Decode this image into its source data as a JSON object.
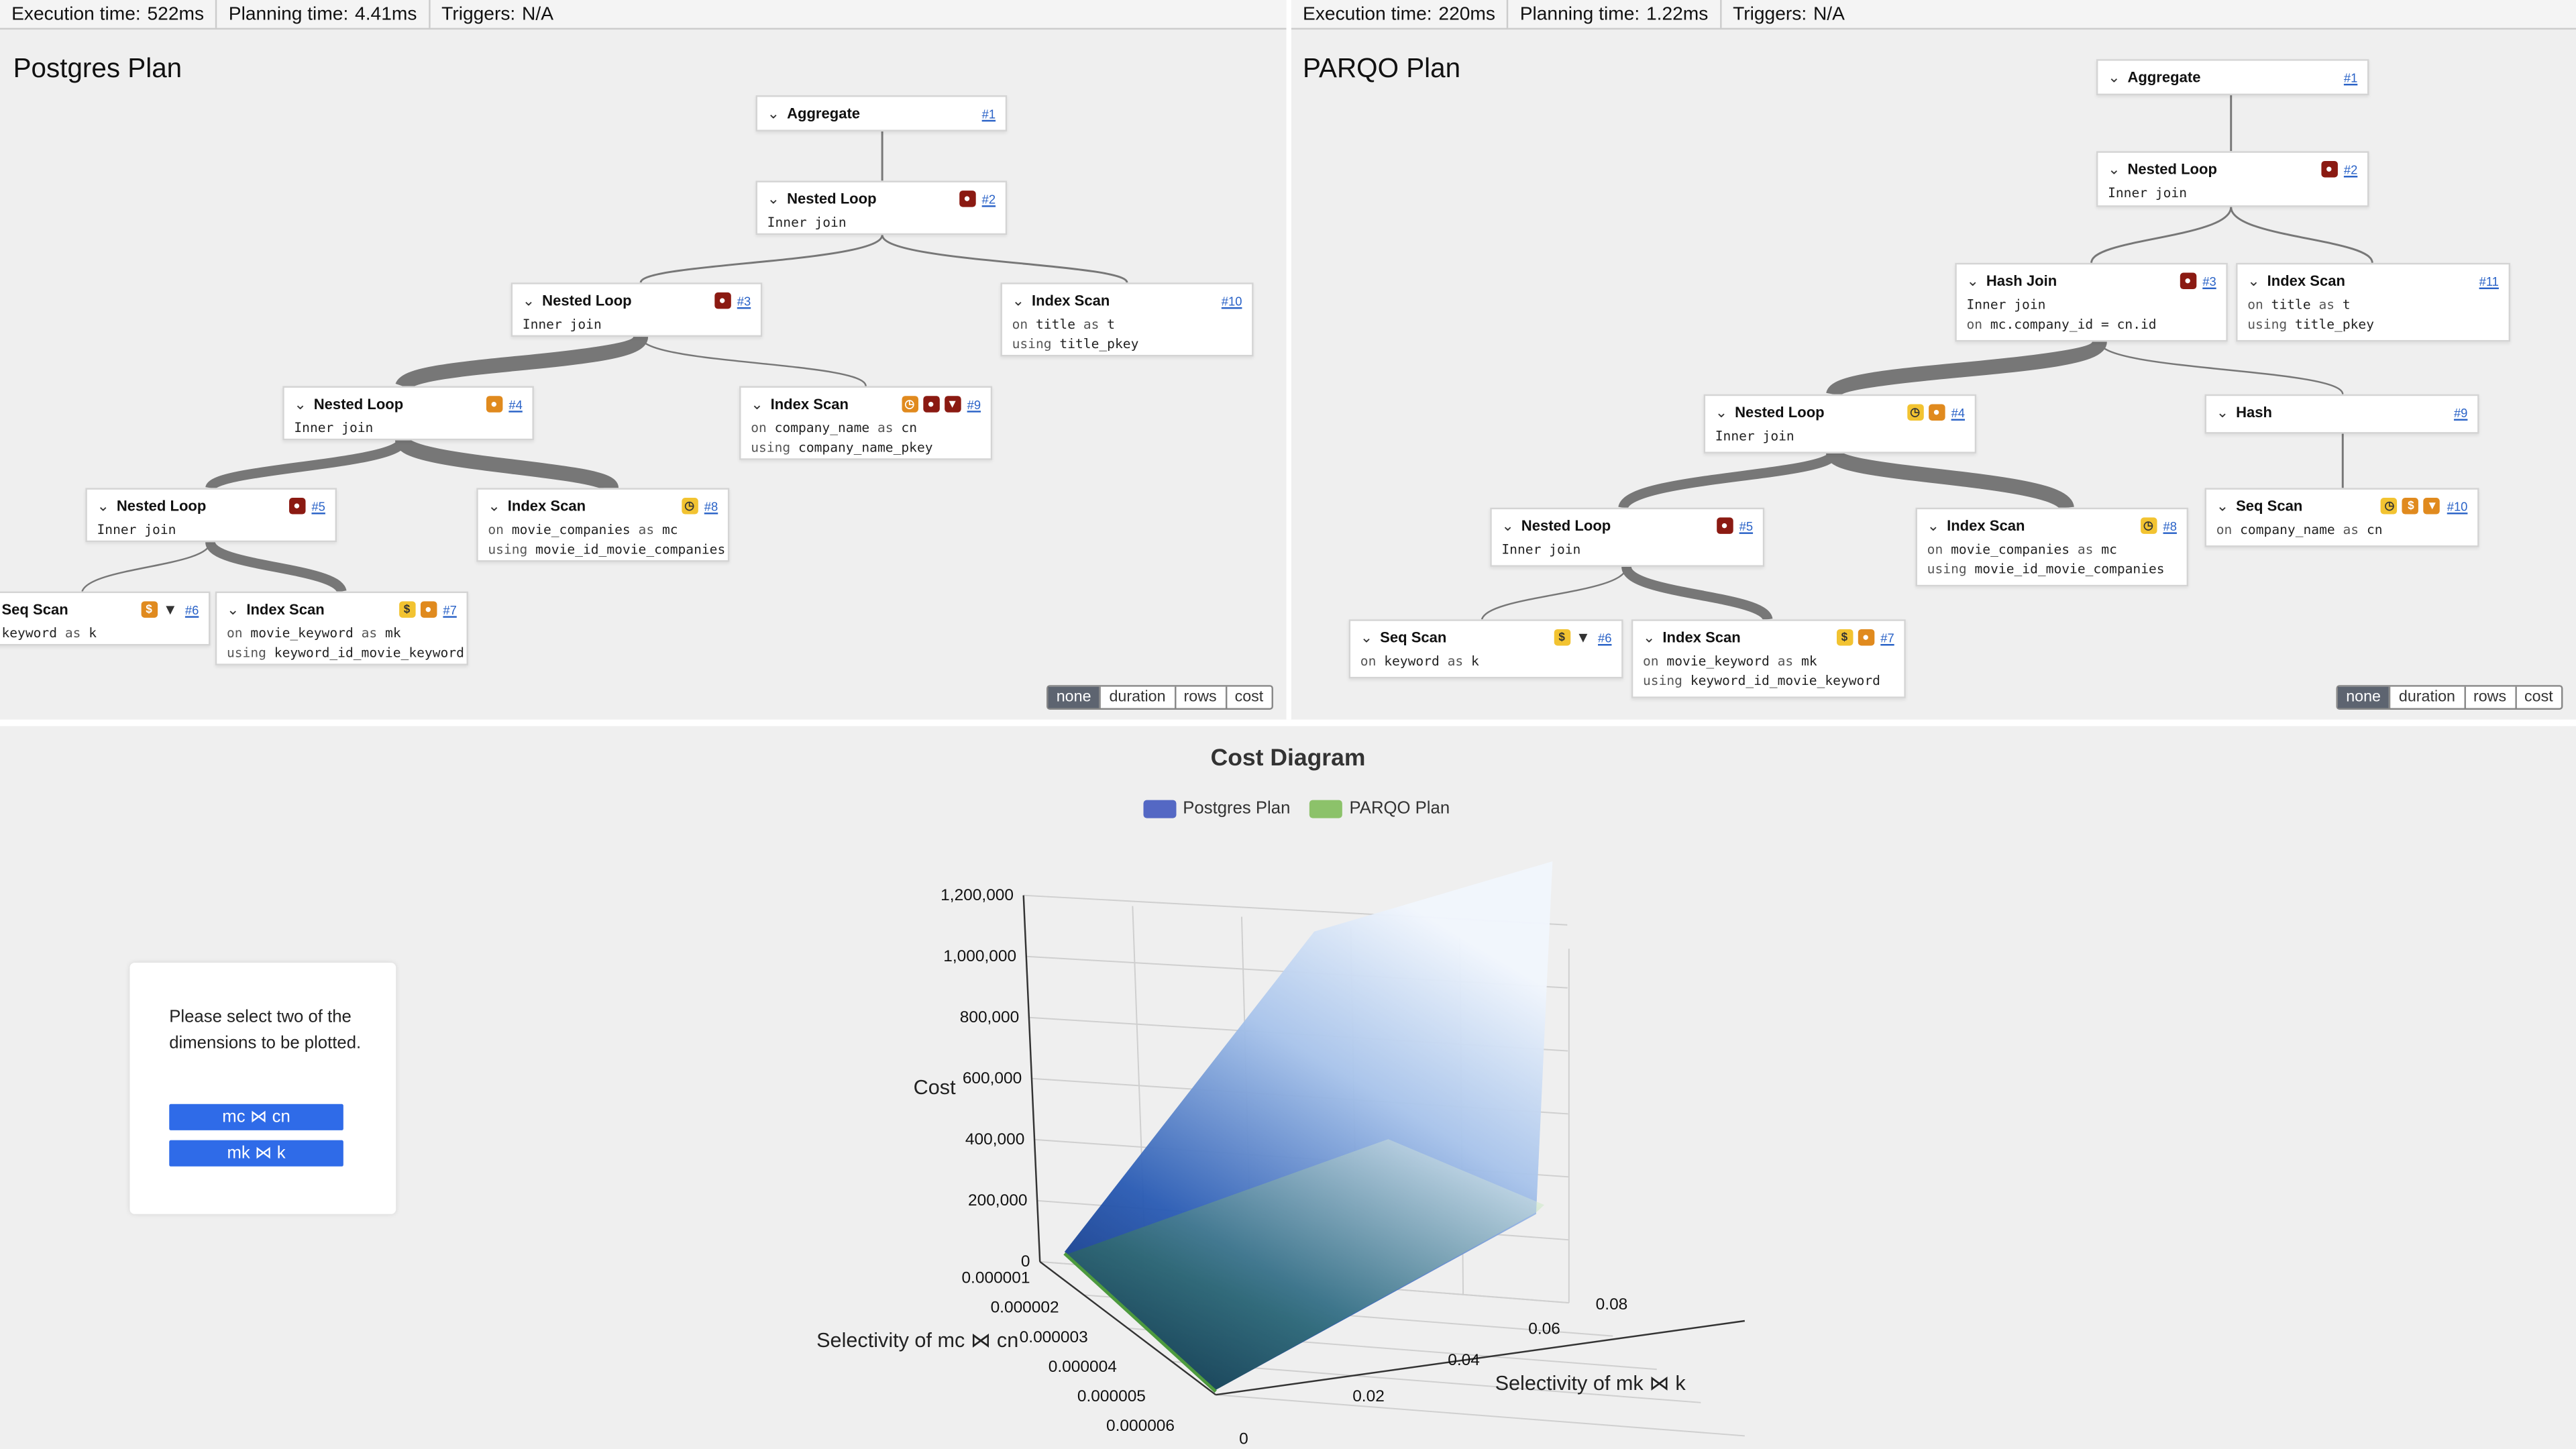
{
  "left": {
    "status": {
      "exec_label": "Execution time:",
      "exec_value": "522ms",
      "plan_label": "Planning time:",
      "plan_value": "4.41ms",
      "trig_label": "Triggers:",
      "trig_value": "N/A"
    },
    "title": "Postgres Plan",
    "nodes": {
      "n1": {
        "name": "Aggregate",
        "id": "#1"
      },
      "n2": {
        "name": "Nested Loop",
        "id": "#2",
        "sub1": "Inner join"
      },
      "n3": {
        "name": "Nested Loop",
        "id": "#3",
        "sub1": "Inner join"
      },
      "n10": {
        "name": "Index Scan",
        "id": "#10",
        "sub1_kw": "on",
        "sub1_val": "title",
        "sub1_kw2": "as",
        "sub1_val2": "t",
        "sub2_kw": "using",
        "sub2_val": "title_pkey"
      },
      "n4": {
        "name": "Nested Loop",
        "id": "#4",
        "sub1": "Inner join"
      },
      "n9": {
        "name": "Index Scan",
        "id": "#9",
        "sub1_kw": "on",
        "sub1_val": "company_name",
        "sub1_kw2": "as",
        "sub1_val2": "cn",
        "sub2_kw": "using",
        "sub2_val": "company_name_pkey"
      },
      "n5": {
        "name": "Nested Loop",
        "id": "#5",
        "sub1": "Inner join"
      },
      "n8": {
        "name": "Index Scan",
        "id": "#8",
        "sub1_kw": "on",
        "sub1_val": "movie_companies",
        "sub1_kw2": "as",
        "sub1_val2": "mc",
        "sub2_kw": "using",
        "sub2_val": "movie_id_movie_companies"
      },
      "n6": {
        "name": "Seq Scan",
        "id": "#6",
        "sub1_val": "keyword",
        "sub1_kw2": "as",
        "sub1_val2": "k"
      },
      "n7": {
        "name": "Index Scan",
        "id": "#7",
        "sub1_kw": "on",
        "sub1_val": "movie_keyword",
        "sub1_kw2": "as",
        "sub1_val2": "mk",
        "sub2_kw": "using",
        "sub2_val": "keyword_id_movie_keyword"
      }
    },
    "toggle": [
      "none",
      "duration",
      "rows",
      "cost"
    ]
  },
  "right": {
    "status": {
      "exec_label": "Execution time:",
      "exec_value": "220ms",
      "plan_label": "Planning time:",
      "plan_value": "1.22ms",
      "trig_label": "Triggers:",
      "trig_value": "N/A"
    },
    "title": "PARQO Plan",
    "nodes": {
      "n1": {
        "name": "Aggregate",
        "id": "#1"
      },
      "n2": {
        "name": "Nested Loop",
        "id": "#2",
        "sub1": "Inner join"
      },
      "n3": {
        "name": "Hash Join",
        "id": "#3",
        "sub1": "Inner join",
        "sub2_kw": "on",
        "sub2_val": "mc.company_id = cn.id"
      },
      "n11": {
        "name": "Index Scan",
        "id": "#11",
        "sub1_kw": "on",
        "sub1_val": "title",
        "sub1_kw2": "as",
        "sub1_val2": "t",
        "sub2_kw": "using",
        "sub2_val": "title_pkey"
      },
      "n4": {
        "name": "Nested Loop",
        "id": "#4",
        "sub1": "Inner join"
      },
      "n9": {
        "name": "Hash",
        "id": "#9"
      },
      "n5": {
        "name": "Nested Loop",
        "id": "#5",
        "sub1": "Inner join"
      },
      "n8": {
        "name": "Index Scan",
        "id": "#8",
        "sub1_kw": "on",
        "sub1_val": "movie_companies",
        "sub1_kw2": "as",
        "sub1_val2": "mc",
        "sub2_kw": "using",
        "sub2_val": "movie_id_movie_companies"
      },
      "n10": {
        "name": "Seq Scan",
        "id": "#10",
        "sub1_kw": "on",
        "sub1_val": "company_name",
        "sub1_kw2": "as",
        "sub1_val2": "cn"
      },
      "n6": {
        "name": "Seq Scan",
        "id": "#6",
        "sub1_kw": "on",
        "sub1_val": "keyword",
        "sub1_kw2": "as",
        "sub1_val2": "k"
      },
      "n7": {
        "name": "Index Scan",
        "id": "#7",
        "sub1_kw": "on",
        "sub1_val": "movie_keyword",
        "sub1_kw2": "as",
        "sub1_val2": "mk",
        "sub2_kw": "using",
        "sub2_val": "keyword_id_movie_keyword"
      }
    },
    "toggle": [
      "none",
      "duration",
      "rows",
      "cost"
    ]
  },
  "dimension_panel": {
    "message": "Please select two of the dimensions to be plotted.",
    "btn1": "mc ⋈ cn",
    "btn2": "mk ⋈ k"
  },
  "colors": {
    "postgres": "#5468c4",
    "parqo": "#8cc26a",
    "button": "#2f6be8"
  },
  "chart_data": {
    "type": "surface3d",
    "title": "Cost Diagram",
    "legend": [
      "Postgres Plan",
      "PARQO Plan"
    ],
    "zlabel": "Cost",
    "xlabel": "Selectivity of mc ⋈ cn",
    "ylabel": "Selectivity of mk ⋈ k",
    "z_ticks": [
      "0",
      "200,000",
      "400,000",
      "600,000",
      "800,000",
      "1,000,000",
      "1,200,000"
    ],
    "x_ticks": [
      "0.000001",
      "0.000002",
      "0.000003",
      "0.000004",
      "0.000005",
      "0.000006"
    ],
    "y_ticks": [
      "0",
      "0.02",
      "0.04",
      "0.06",
      "0.08"
    ],
    "zlim": [
      0,
      1200000
    ],
    "series": [
      {
        "name": "Postgres Plan",
        "approx_max_cost": 1150000
      },
      {
        "name": "PARQO Plan",
        "approx_max_cost": 240000
      }
    ]
  }
}
